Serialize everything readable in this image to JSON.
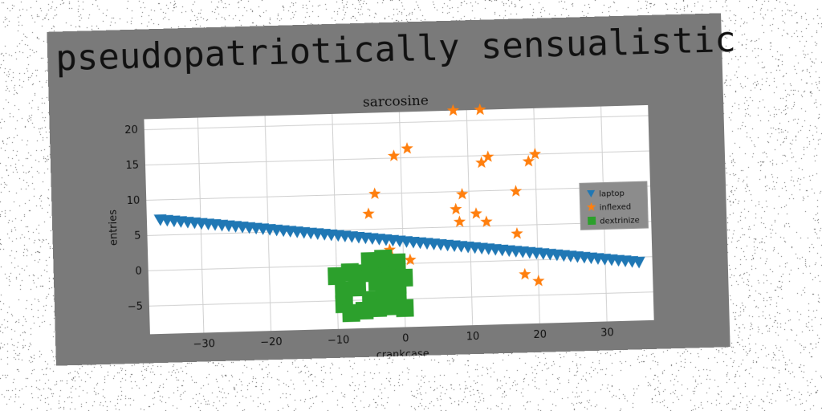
{
  "page": {
    "heading": "pseudopatriotically sensualistic"
  },
  "chart_data": {
    "type": "scatter",
    "title": "sarcosine",
    "xlabel": "crankcase",
    "ylabel": "entries",
    "xlim": [
      -38,
      37
    ],
    "ylim": [
      -9,
      21.5
    ],
    "xticks": [
      -30,
      -20,
      -10,
      0,
      10,
      20,
      30
    ],
    "yticks": [
      -5,
      0,
      5,
      10,
      15,
      20
    ],
    "grid": true,
    "legend_position": "center-right",
    "series": [
      {
        "name": "laptop",
        "marker": "triangle-down",
        "color": "#1f77b4",
        "line": {
          "x_start": -36,
          "x_end": 35,
          "y_start": 7.2,
          "y_end": -0.7,
          "count": 71
        }
      },
      {
        "name": "inflexed",
        "marker": "star",
        "color": "#ff7f0e",
        "x": [
          8,
          12,
          1,
          -1,
          13,
          12,
          20,
          19,
          -4,
          9,
          17,
          -5,
          8,
          11,
          8.5,
          12.5,
          17,
          -2,
          1,
          18,
          20
        ],
        "y": [
          21.5,
          21.5,
          16.3,
          15.3,
          14.8,
          14.0,
          15.0,
          14.0,
          10.0,
          9.6,
          9.8,
          7.2,
          7.5,
          6.8,
          5.7,
          5.6,
          3.8,
          2.0,
          0.5,
          -2.0,
          -3.0
        ]
      },
      {
        "name": "dextrinize",
        "marker": "square",
        "color": "#2ca02c",
        "x": [
          -10,
          -8,
          -6,
          -4,
          -2,
          -5,
          -3,
          -1,
          -9,
          -7,
          -4,
          -2,
          0,
          -9,
          -5,
          -3,
          -1,
          -8,
          -6,
          -4,
          -2,
          0,
          -3,
          -1
        ],
        "y": [
          -1.5,
          -1.0,
          -1.2,
          -1.0,
          -0.5,
          0.5,
          0.8,
          0.2,
          -3.5,
          -3.2,
          -2.5,
          -2.2,
          -2.0,
          -5.5,
          -5.0,
          -5.2,
          -4.5,
          -6.8,
          -6.5,
          -6.2,
          -6.0,
          -6.3,
          -3.8,
          -3.0
        ]
      }
    ]
  }
}
